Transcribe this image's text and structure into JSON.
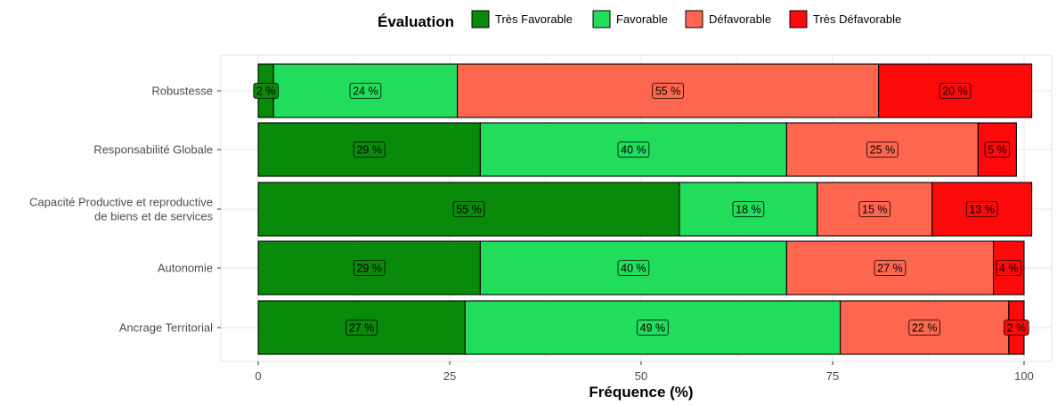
{
  "chart_data": {
    "type": "bar",
    "orientation": "horizontal",
    "stacked": true,
    "legend": {
      "title": "Évaluation",
      "position": "top"
    },
    "xlabel": "Fréquence (%)",
    "ylabel": "",
    "xlim": [
      0,
      100
    ],
    "x_ticks": [
      "0",
      "25",
      "50",
      "75",
      "100"
    ],
    "grid": true,
    "categories": [
      "Robustesse",
      "Responsabilité Globale",
      "Capacité Productive et reproductive de biens et de services",
      "Autonomie",
      "Ancrage Territorial"
    ],
    "category_lines": [
      [
        "Robustesse"
      ],
      [
        "Responsabilité Globale"
      ],
      [
        "Capacité Productive et reproductive",
        "de biens et de services"
      ],
      [
        "Autonomie"
      ],
      [
        "Ancrage Territorial"
      ]
    ],
    "series": [
      {
        "name": "Très Favorable",
        "color": "#0a8a0a",
        "values": [
          2,
          29,
          55,
          29,
          27
        ],
        "labels": [
          "2 %",
          "29 %",
          "55 %",
          "29 %",
          "27 %"
        ]
      },
      {
        "name": "Favorable",
        "color": "#22dd5c",
        "values": [
          24,
          40,
          18,
          40,
          49
        ],
        "labels": [
          "24 %",
          "40 %",
          "18 %",
          "40 %",
          "49 %"
        ]
      },
      {
        "name": "Défavorable",
        "color": "#ff6650",
        "values": [
          55,
          25,
          15,
          27,
          22
        ],
        "labels": [
          "55 %",
          "25 %",
          "15 %",
          "27 %",
          "22 %"
        ]
      },
      {
        "name": "Très Défavorable",
        "color": "#ff0a0a",
        "values": [
          20,
          5,
          13,
          4,
          2
        ],
        "labels": [
          "20 %",
          "5 %",
          "13 %",
          "4 %",
          "2 %"
        ]
      }
    ]
  }
}
